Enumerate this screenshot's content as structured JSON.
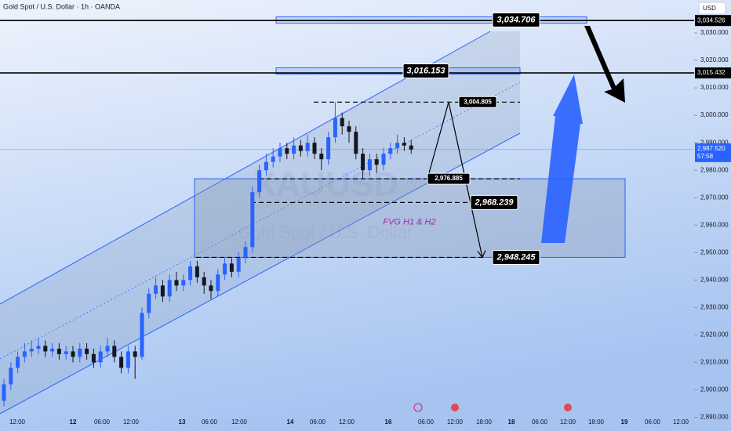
{
  "chart_data": {
    "type": "candlestick",
    "title": "Gold Spot / U.S. Dollar · 1h · OANDA",
    "watermark_symbol": "XAUUSD",
    "watermark_name": "Gold Spot / U.S. Dollar",
    "currency": "USD",
    "up_color": "#2962ff",
    "down_color": "#131722",
    "candles": {
      "open": [
        2896,
        2902,
        2908,
        2912,
        2914,
        2915,
        2916,
        2914,
        2915,
        2913,
        2914,
        2912,
        2915,
        2913,
        2910,
        2914,
        2916,
        2912,
        2908,
        2914,
        2912,
        2928,
        2935,
        2938,
        2934,
        2940,
        2938,
        2940,
        2945,
        2941,
        2938,
        2936,
        2942,
        2946,
        2943,
        2948,
        2952,
        2972,
        2980,
        2983,
        2985,
        2988,
        2986,
        2989,
        2987,
        2990,
        2986,
        2984,
        2992,
        2999,
        2996,
        2994,
        2986,
        2980,
        2984,
        2982,
        2986,
        2988,
        2990,
        2989
      ],
      "high": [
        2904,
        2910,
        2914,
        2917,
        2918,
        2919,
        2918,
        2917,
        2917,
        2916,
        2916,
        2917,
        2917,
        2915,
        2916,
        2919,
        2918,
        2914,
        2916,
        2916,
        2930,
        2937,
        2941,
        2940,
        2942,
        2943,
        2942,
        2947,
        2947,
        2943,
        2940,
        2944,
        2948,
        2948,
        2950,
        2954,
        2974,
        2982,
        2986,
        2988,
        2990,
        2990,
        2992,
        2991,
        2993,
        2992,
        2988,
        2994,
        3004.8,
        3001,
        2998,
        2996,
        2988,
        2986,
        2986,
        2988,
        2990,
        2993,
        2992,
        2991
      ],
      "low": [
        2894,
        2900,
        2906,
        2910,
        2912,
        2913,
        2912,
        2912,
        2911,
        2911,
        2910,
        2910,
        2911,
        2908,
        2908,
        2912,
        2910,
        2906,
        2906,
        2904,
        2911,
        2926,
        2933,
        2932,
        2932,
        2936,
        2936,
        2938,
        2939,
        2935,
        2933,
        2934,
        2940,
        2941,
        2941,
        2946,
        2950,
        2970,
        2978,
        2981,
        2983,
        2984,
        2984,
        2985,
        2985,
        2984,
        2980,
        2982,
        2990,
        2993,
        2990,
        2984,
        2977,
        2978,
        2979,
        2980,
        2984,
        2986,
        2987,
        2986
      ],
      "close": [
        2902,
        2908,
        2912,
        2914,
        2915,
        2916,
        2914,
        2915,
        2913,
        2914,
        2912,
        2915,
        2913,
        2910,
        2914,
        2916,
        2912,
        2908,
        2914,
        2912,
        2928,
        2935,
        2938,
        2934,
        2940,
        2938,
        2940,
        2945,
        2941,
        2938,
        2936,
        2942,
        2946,
        2943,
        2948,
        2952,
        2972,
        2980,
        2983,
        2985,
        2988,
        2986,
        2989,
        2987,
        2990,
        2986,
        2984,
        2992,
        2999,
        2996,
        2994,
        2986,
        2980,
        2984,
        2982,
        2986,
        2988,
        2990,
        2989,
        2987.52
      ]
    },
    "ylim": [
      2885,
      3042
    ],
    "yticks": [
      {
        "value": 2890,
        "label": "2,890.000"
      },
      {
        "value": 2900,
        "label": "2,900.000"
      },
      {
        "value": 2910,
        "label": "2,910.000"
      },
      {
        "value": 2920,
        "label": "2,920.000"
      },
      {
        "value": 2930,
        "label": "2,930.000"
      },
      {
        "value": 2940,
        "label": "2,940.000"
      },
      {
        "value": 2950,
        "label": "2,950.000"
      },
      {
        "value": 2960,
        "label": "2,960.000"
      },
      {
        "value": 2970,
        "label": "2,970.000"
      },
      {
        "value": 2980,
        "label": "2,980.000"
      },
      {
        "value": 2990,
        "label": "2,990.000"
      },
      {
        "value": 3000,
        "label": "3,000.000"
      },
      {
        "value": 3010,
        "label": "3,010.000"
      },
      {
        "value": 3020,
        "label": "3,020.000"
      },
      {
        "value": 3030,
        "label": "3,030.000"
      }
    ],
    "time_labels": [
      "12:00",
      "12",
      "06:00",
      "12:00",
      "13",
      "06:00",
      "12:00",
      "14",
      "06:00",
      "12:00",
      "16",
      "06:00",
      "12:00",
      "18:00",
      "18",
      "06:00",
      "12:00",
      "18:00",
      "19",
      "06:00",
      "12:00"
    ],
    "horizontal_lines": [
      {
        "value": 3034.526,
        "label": "3,034.526"
      },
      {
        "value": 3015.432,
        "label": "3,015.432"
      }
    ],
    "last_price": {
      "value": 2987.52,
      "label": "2,987.520",
      "countdown": "57:58"
    },
    "levels": [
      {
        "value": 3034.706,
        "label": "3,034.706"
      },
      {
        "value": 3016.153,
        "label": "3,016.153"
      },
      {
        "value": 3004.805,
        "label": "3,004.805"
      },
      {
        "value": 2976.885,
        "label": "2,976.885"
      },
      {
        "value": 2968.239,
        "label": "2,968.239"
      },
      {
        "value": 2948.245,
        "label": "2,948.245"
      }
    ],
    "zone_label": "FVG H1 & H2"
  }
}
